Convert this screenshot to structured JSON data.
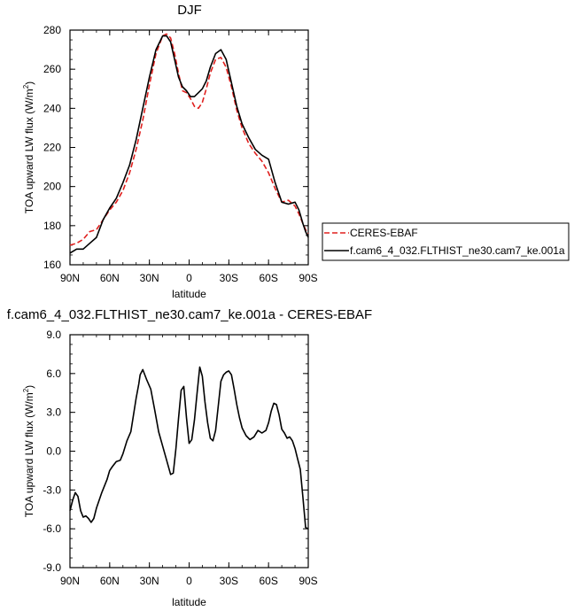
{
  "chart_data": [
    {
      "type": "line",
      "title": "DJF",
      "xlabel": "latitude",
      "ylabel": "TOA upward LW flux (W/m",
      "ylabel_sup": "2",
      "ylabel_close": ")",
      "xlim": [
        90,
        -90
      ],
      "ylim": [
        160,
        280
      ],
      "xticks": [
        90,
        60,
        30,
        0,
        -30,
        -60,
        -90
      ],
      "xticklabels": [
        "90N",
        "60N",
        "30N",
        "0",
        "30S",
        "60S",
        "90S"
      ],
      "yticks": [
        160,
        180,
        200,
        220,
        240,
        260,
        280
      ],
      "yticklabels": [
        "160",
        "180",
        "200",
        "220",
        "240",
        "260",
        "280"
      ],
      "legend_position": "right",
      "series": [
        {
          "name": "CERES-EBAF",
          "color": "#e0201e",
          "dash": "dashed",
          "x": [
            90,
            85,
            80,
            75,
            70,
            65,
            60,
            55,
            50,
            45,
            40,
            35,
            30,
            25,
            20,
            17,
            14,
            11,
            8,
            5,
            2,
            -1,
            -4,
            -7,
            -10,
            -13,
            -16,
            -20,
            -24,
            -28,
            -32,
            -36,
            -40,
            -45,
            -50,
            -55,
            -60,
            -65,
            -70,
            -75,
            -80,
            -83,
            -86,
            -88,
            -90
          ],
          "y": [
            170,
            171,
            173,
            177,
            178,
            183,
            188,
            192,
            198,
            207,
            219,
            234,
            252,
            268,
            277,
            278,
            276,
            268,
            258,
            249,
            248,
            245,
            241,
            240,
            243,
            250,
            258,
            265,
            266,
            261,
            251,
            239,
            230,
            222,
            217,
            213,
            207,
            199,
            192,
            193,
            190,
            186,
            181,
            178,
            176
          ]
        },
        {
          "name": "f.cam6_4_032.FLTHIST_ne30.cam7_ke.001a",
          "color": "#000000",
          "dash": "solid",
          "x": [
            90,
            85,
            80,
            75,
            70,
            65,
            60,
            55,
            50,
            45,
            40,
            35,
            30,
            25,
            20,
            17,
            14,
            11,
            8,
            5,
            2,
            -1,
            -4,
            -7,
            -10,
            -13,
            -16,
            -20,
            -24,
            -28,
            -32,
            -36,
            -40,
            -45,
            -50,
            -55,
            -60,
            -65,
            -70,
            -75,
            -80,
            -83,
            -86,
            -88,
            -90
          ],
          "y": [
            166,
            168,
            168,
            171,
            174,
            183,
            189,
            194,
            202,
            211,
            224,
            240,
            256,
            270,
            277,
            277,
            274,
            265,
            256,
            251,
            249,
            246,
            246,
            248,
            250,
            254,
            261,
            268,
            270,
            265,
            253,
            241,
            232,
            225,
            219,
            216,
            214,
            202,
            192,
            191,
            192,
            188,
            181,
            177,
            174
          ]
        }
      ]
    },
    {
      "type": "line",
      "title": "f.cam6_4_032.FLTHIST_ne30.cam7_ke.001a - CERES-EBAF",
      "xlabel": "latitude",
      "ylabel": "TOA upward LW flux (W/m",
      "ylabel_sup": "2",
      "ylabel_close": ")",
      "xlim": [
        90,
        -90
      ],
      "ylim": [
        -9,
        9
      ],
      "xticks": [
        90,
        60,
        30,
        0,
        -30,
        -60,
        -90
      ],
      "xticklabels": [
        "90N",
        "60N",
        "30N",
        "0",
        "30S",
        "60S",
        "90S"
      ],
      "yticks": [
        -9,
        -6,
        -3,
        0,
        3,
        6,
        9
      ],
      "yticklabels": [
        "-9.0",
        "-6.0",
        "-3.0",
        "0.0",
        "3.0",
        "6.0",
        "9.0"
      ],
      "series": [
        {
          "color": "#000000",
          "x": [
            90,
            88,
            86,
            84,
            82,
            80,
            78,
            76,
            74,
            72,
            70,
            66,
            62,
            60,
            58,
            55,
            52,
            50,
            47,
            44,
            42,
            40,
            38,
            37,
            35,
            32,
            29,
            26,
            23,
            20,
            17,
            14,
            12,
            10,
            8,
            6,
            4,
            2,
            0,
            -2,
            -4,
            -6,
            -8,
            -10,
            -12,
            -14,
            -16,
            -18,
            -20,
            -22,
            -24,
            -26,
            -28,
            -30,
            -32,
            -34,
            -36,
            -38,
            -40,
            -43,
            -46,
            -49,
            -52,
            -55,
            -58,
            -60,
            -62,
            -64,
            -66,
            -68,
            -70,
            -72,
            -74,
            -76,
            -78,
            -80,
            -82,
            -84,
            -86,
            -88,
            -90
          ],
          "y": [
            -4.6,
            -3.8,
            -3.2,
            -3.5,
            -4.6,
            -5.1,
            -5.0,
            -5.2,
            -5.5,
            -5.2,
            -4.4,
            -3.2,
            -2.2,
            -1.5,
            -1.2,
            -0.8,
            -0.7,
            -0.2,
            0.8,
            1.5,
            2.8,
            4.1,
            5.2,
            5.9,
            6.3,
            5.5,
            4.8,
            3.2,
            1.5,
            0.4,
            -0.7,
            -1.8,
            -1.7,
            0.2,
            2.5,
            4.7,
            5.0,
            2.6,
            0.6,
            0.9,
            2.4,
            4.5,
            6.5,
            5.8,
            3.8,
            2.2,
            1.0,
            0.8,
            1.6,
            3.5,
            5.4,
            5.9,
            6.1,
            6.2,
            5.9,
            4.8,
            3.6,
            2.6,
            1.8,
            1.2,
            0.9,
            1.1,
            1.6,
            1.4,
            1.6,
            2.2,
            3.1,
            3.7,
            3.6,
            2.8,
            1.7,
            1.4,
            1.0,
            1.1,
            0.8,
            0.2,
            -0.6,
            -1.4,
            -3.6,
            -5.9,
            -6.0
          ]
        }
      ]
    }
  ]
}
